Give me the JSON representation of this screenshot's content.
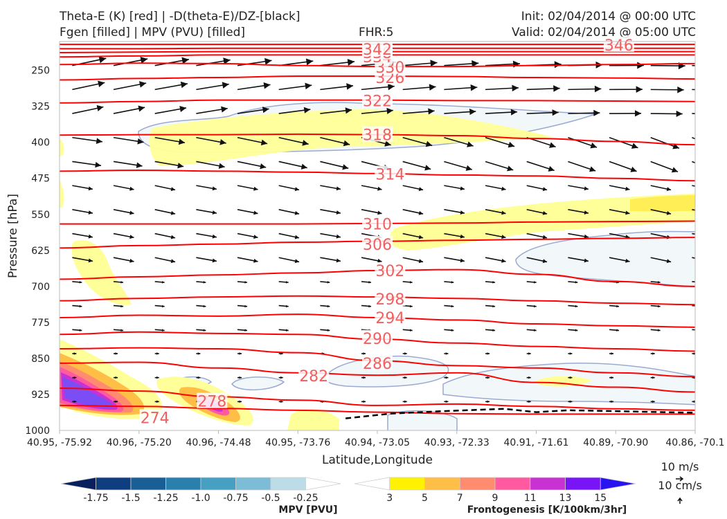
{
  "header": {
    "title_line1": "Theta-E (K) [red] | -D(theta-E)/DZ-[black]",
    "title_line2": "Fgen [filled] | MPV (PVU) [filled]",
    "fhr": "FHR:5",
    "init": "Init: 02/04/2014 @ 00:00 UTC",
    "valid": "Valid: 02/04/2014 @ 05:00 UTC"
  },
  "chart_data": {
    "type": "cross-section",
    "xlabel": "Latitude,Longitude",
    "ylabel": "Pressure [hPa]",
    "x_ticks": [
      "40.95, -75.92",
      "40.96, -75.20",
      "40.96, -74.48",
      "40.95, -73.76",
      "40.94, -73.05",
      "40.93, -72.33",
      "40.91, -71.61",
      "40.89, -70.90",
      "40.86, -70.1"
    ],
    "y_ticks": [
      250,
      325,
      400,
      475,
      550,
      625,
      700,
      775,
      850,
      925,
      1000
    ],
    "ylim": [
      1000,
      190
    ],
    "y_inverted": true,
    "theta_e_contours": [
      {
        "value": "274",
        "y": [
          948,
          950,
          954,
          958,
          962,
          965,
          966,
          966,
          966
        ],
        "label_x": 0.15,
        "label_y": 973
      },
      {
        "value": "278",
        "y": [
          912,
          918,
          930,
          937,
          948,
          945,
          950,
          955,
          958
        ],
        "label_x": 0.24,
        "label_y": 939
      },
      {
        "value": "282",
        "y": [
          860,
          858,
          870,
          880,
          885,
          880,
          900,
          910,
          920
        ],
        "label_x": 0.4,
        "label_y": 886
      },
      {
        "value": "286",
        "y": [
          830,
          828,
          830,
          838,
          855,
          865,
          870,
          880,
          888
        ],
        "label_x": 0.5,
        "label_y": 860
      },
      {
        "value": "290",
        "y": [
          800,
          795,
          798,
          800,
          810,
          818,
          825,
          830,
          835
        ],
        "label_x": 0.5,
        "label_y": 808
      },
      {
        "value": "294",
        "y": [
          765,
          760,
          762,
          758,
          765,
          770,
          778,
          782,
          785
        ],
        "label_x": 0.52,
        "label_y": 765
      },
      {
        "value": "298",
        "y": [
          730,
          725,
          722,
          720,
          722,
          725,
          730,
          735,
          738
        ],
        "label_x": 0.52,
        "label_y": 726
      },
      {
        "value": "302",
        "y": [
          685,
          680,
          676,
          672,
          667,
          665,
          675,
          690,
          700
        ],
        "label_x": 0.52,
        "label_y": 667
      },
      {
        "value": "306",
        "y": [
          620,
          615,
          612,
          608,
          606,
          604,
          602,
          600,
          598
        ],
        "label_x": 0.5,
        "label_y": 612
      },
      {
        "value": "310",
        "y": [
          570,
          570,
          570,
          570,
          569,
          568,
          566,
          565,
          564
        ],
        "label_x": 0.5,
        "label_y": 570
      },
      {
        "value": "314",
        "y": [
          460,
          458,
          460,
          462,
          465,
          468,
          470,
          475,
          480
        ],
        "label_x": 0.52,
        "label_y": 466
      },
      {
        "value": "318",
        "y": [
          385,
          384,
          384,
          383,
          384,
          386,
          392,
          398,
          405
        ],
        "label_x": 0.5,
        "label_y": 384
      },
      {
        "value": "322",
        "y": [
          318,
          315,
          312,
          312,
          312,
          313,
          313,
          314,
          315
        ],
        "label_x": 0.5,
        "label_y": 313
      },
      {
        "value": "326",
        "y": [
          270,
          267,
          265,
          262,
          262,
          263,
          265,
          266,
          268
        ],
        "label_x": 0.52,
        "label_y": 265
      },
      {
        "value": "330",
        "y": [
          238,
          235,
          236,
          240,
          242,
          242,
          240,
          238,
          236
        ],
        "label_x": 0.52,
        "label_y": 243
      },
      {
        "value": "334",
        "y": [
          222,
          220,
          218,
          218,
          218,
          218,
          218,
          218,
          218
        ],
        "label_x": 0.5,
        "label_y": 222
      },
      {
        "value": "338",
        "y": [
          213,
          212,
          211,
          211,
          211,
          211,
          211,
          211,
          211
        ],
        "label_x": 0.5,
        "label_y": 213
      },
      {
        "value": "342",
        "y": [
          205,
          205,
          204,
          204,
          204,
          204,
          204,
          204,
          204
        ],
        "label_x": 0.5,
        "label_y": 206
      },
      {
        "value": "346",
        "y": [
          196,
          196,
          196,
          196,
          196,
          196,
          196,
          196,
          196
        ],
        "label_x": 0.88,
        "label_y": 197
      }
    ],
    "zero_contour": {
      "style": "dashed",
      "x": [
        0.45,
        0.52,
        0.6,
        0.7,
        0.75,
        0.8,
        0.88,
        0.95,
        1.0
      ],
      "y": [
        975,
        965,
        960,
        955,
        962,
        958,
        960,
        962,
        963
      ]
    },
    "colorbar_mpv": {
      "label": "MPV [PVU]",
      "ticks": [
        "-1.75",
        "-1.5",
        "-1.25",
        "-1.0",
        "-0.75",
        "-0.5",
        "-0.25"
      ],
      "colors": [
        "#08205e",
        "#0f3e80",
        "#1a5e96",
        "#2980ad",
        "#45a0c4",
        "#7dbcd6",
        "#bcdde8",
        "#ffffff"
      ]
    },
    "colorbar_fgen": {
      "label": "Frontogenesis [K/100km/3hr]",
      "ticks": [
        "3",
        "5",
        "7",
        "9",
        "11",
        "13",
        "15"
      ],
      "colors": [
        "#ffffff",
        "#fff200",
        "#ffbe46",
        "#ff8c6e",
        "#ff5aa0",
        "#c832d2",
        "#7814f5",
        "#2814f0"
      ]
    },
    "vector_key": {
      "line1": "10 m/s",
      "line2": "10 cm/s"
    }
  },
  "colors": {
    "theta_e": "#ff0000",
    "label": "#f06060",
    "mpv_contour": "#9aaad0",
    "mpv_fill": "#f2f7fa",
    "arrow": "#111111"
  }
}
